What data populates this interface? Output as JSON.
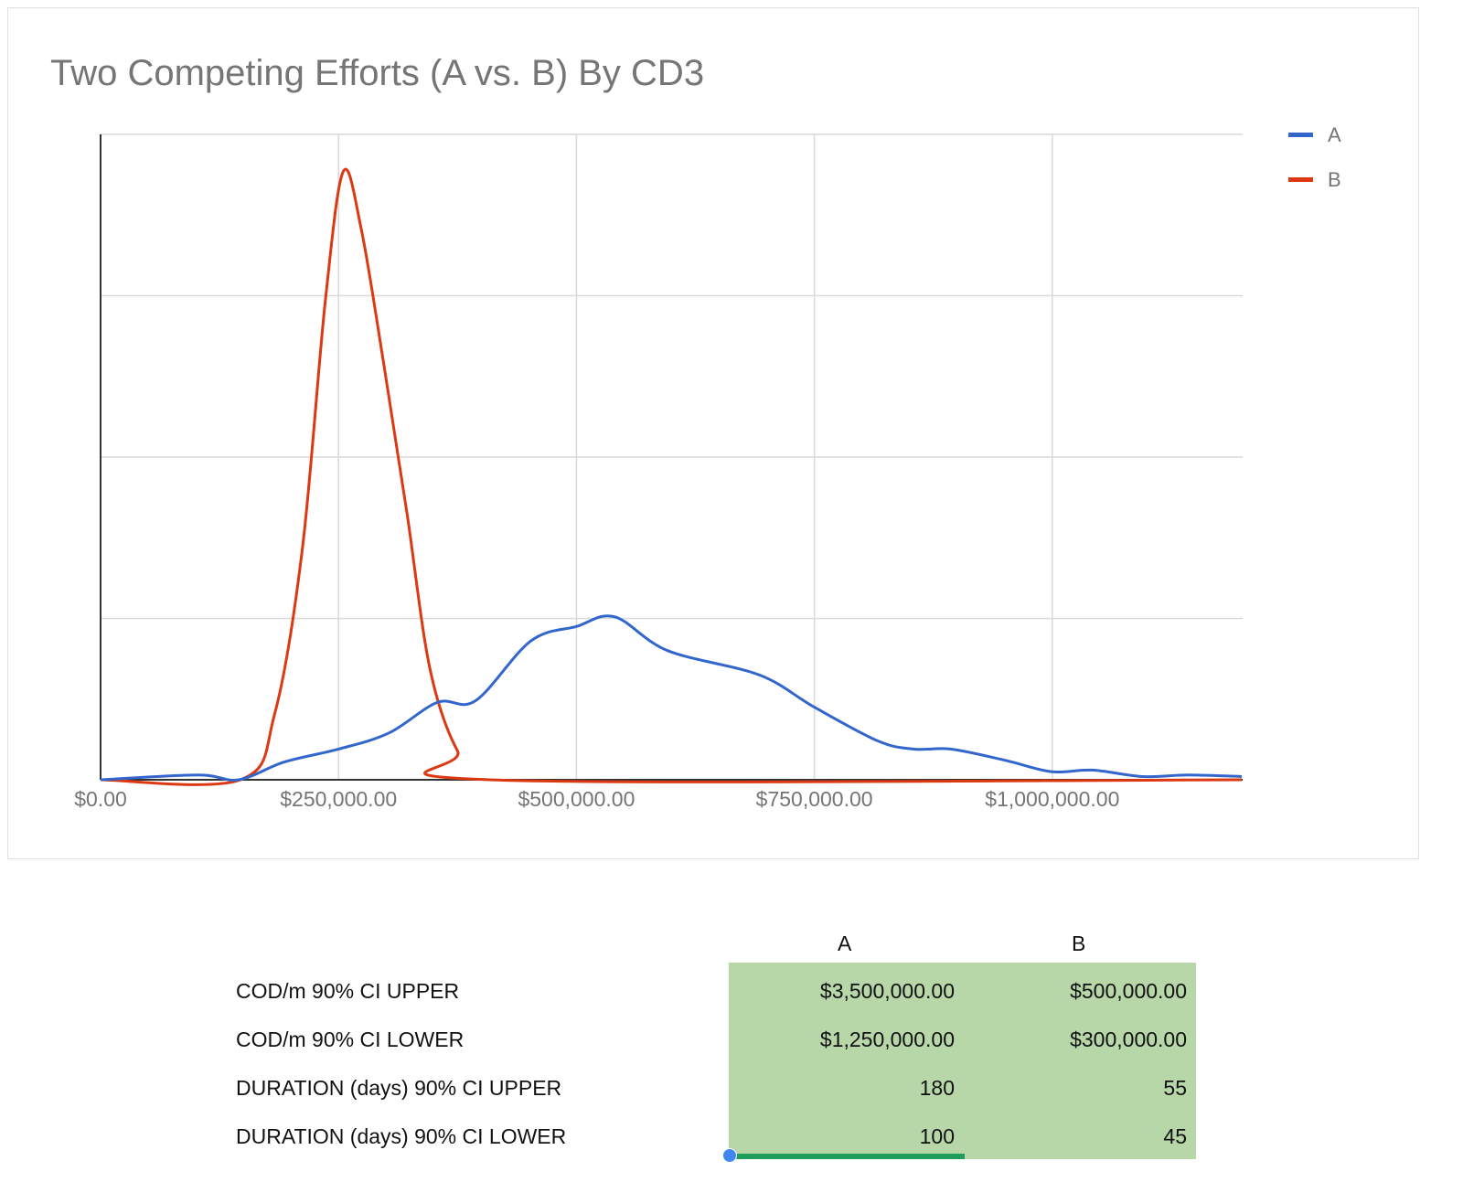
{
  "chart_data": {
    "type": "line",
    "title": "Two Competing Efforts (A vs. B) By CD3",
    "xlabel": "",
    "ylabel": "",
    "xlim": [
      0,
      1200000
    ],
    "ylim": [
      0,
      4
    ],
    "x_ticks": [
      0,
      250000,
      500000,
      750000,
      1000000
    ],
    "x_tick_labels": [
      "$0.00",
      "$250,000.00",
      "$500,000.00",
      "$750,000.00",
      "$1,000,000.00"
    ],
    "y_tick_labels_shown": false,
    "grid": true,
    "smooth": true,
    "legend_position": "right",
    "series": [
      {
        "name": "A",
        "color": "#3366cc",
        "x": [
          0,
          102000,
          145000,
          193000,
          250000,
          303000,
          354000,
          394000,
          452000,
          500000,
          540000,
          596000,
          692000,
          750000,
          817000,
          855000,
          894000,
          951000,
          999000,
          1042000,
          1095000,
          1143000,
          1199000
        ],
        "y": [
          0,
          0.03,
          0,
          0.11,
          0.19,
          0.29,
          0.48,
          0.49,
          0.86,
          0.95,
          1.01,
          0.8,
          0.65,
          0.45,
          0.24,
          0.19,
          0.19,
          0.12,
          0.05,
          0.06,
          0.02,
          0.03,
          0.02
        ]
      },
      {
        "name": "B",
        "color": "#dc3912",
        "x": [
          0,
          147000,
          183000,
          212000,
          236000,
          255000,
          274000,
          298000,
          322000,
          346000,
          375000,
          409000,
          1199000
        ],
        "y": [
          0,
          0,
          0.41,
          1.43,
          2.96,
          3.77,
          3.41,
          2.56,
          1.65,
          0.69,
          0.18,
          0,
          0
        ]
      }
    ]
  },
  "table": {
    "headers": [
      "A",
      "B"
    ],
    "rows": [
      {
        "label": "COD/m 90% CI UPPER",
        "a": "$3,500,000.00",
        "b": "$500,000.00"
      },
      {
        "label": "COD/m 90% CI LOWER",
        "a": "$1,250,000.00",
        "b": "$300,000.00"
      },
      {
        "label": "DURATION (days) 90% CI UPPER",
        "a": "180",
        "b": "55"
      },
      {
        "label": "DURATION (days) 90% CI LOWER",
        "a": "100",
        "b": "45"
      }
    ],
    "fill_color": "#b7d7a8"
  }
}
